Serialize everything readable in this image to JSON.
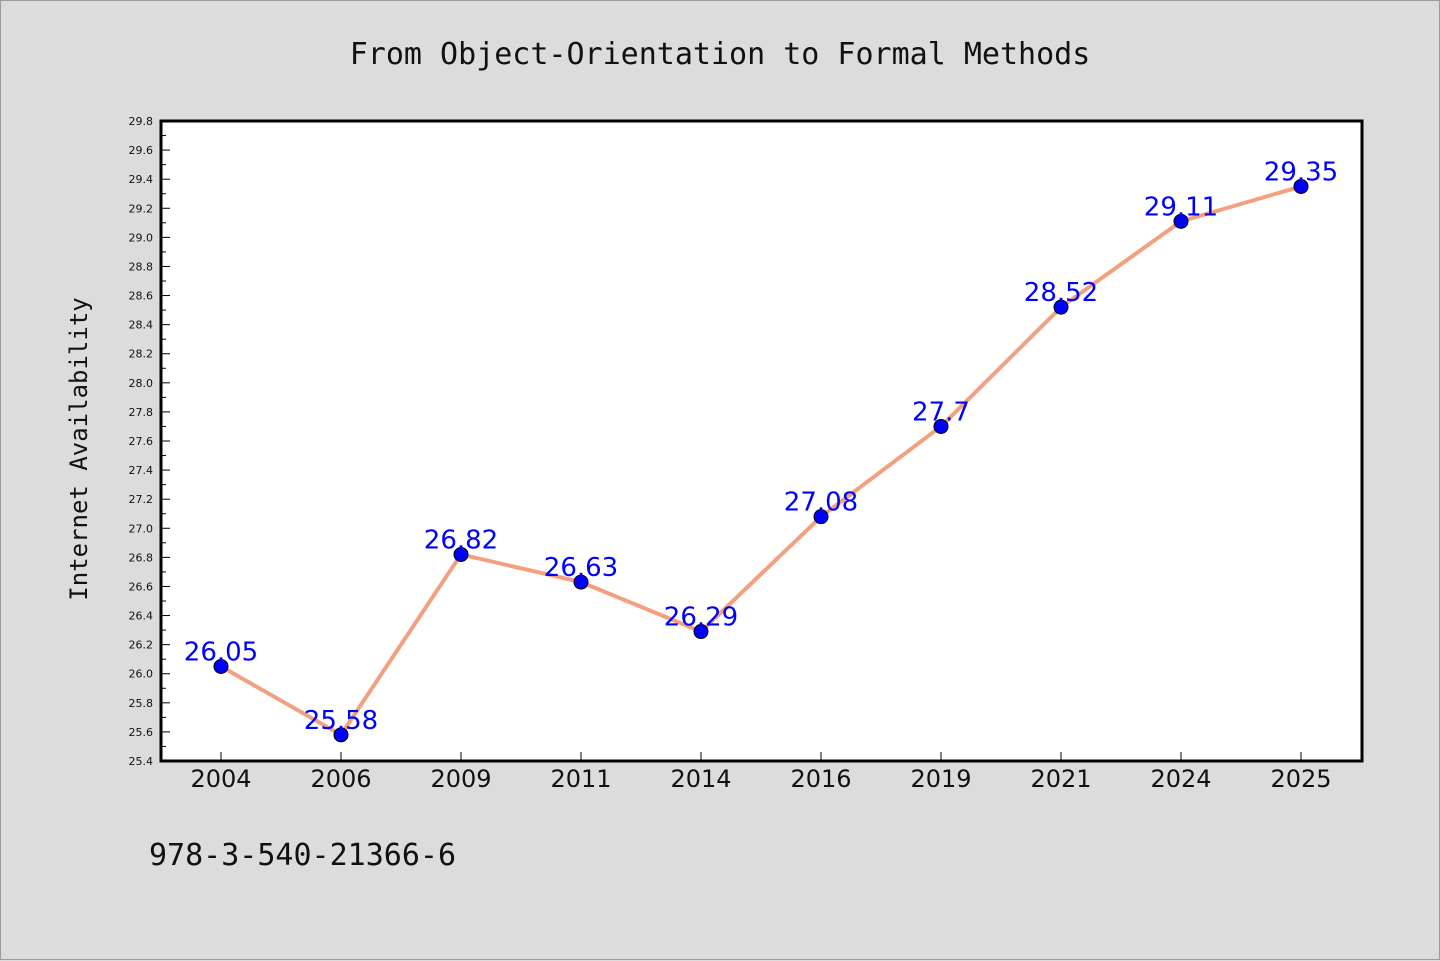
{
  "chart_data": {
    "type": "line",
    "title": "From Object-Orientation to Formal Methods",
    "xlabel": "",
    "ylabel": "Internet Availability",
    "categories": [
      "2004",
      "2006",
      "2009",
      "2011",
      "2014",
      "2016",
      "2019",
      "2021",
      "2024",
      "2025"
    ],
    "series": [
      {
        "values": [
          26.05,
          25.58,
          26.82,
          26.63,
          26.29,
          27.08,
          27.7,
          28.52,
          29.11,
          29.35
        ],
        "data_labels": [
          "26.05",
          "25.58",
          "26.82",
          "26.63",
          "26.29",
          "27.08",
          "27.7",
          "28.52",
          "29.11",
          "29.35"
        ],
        "line_color": "#f4a07f",
        "marker_color": "#0000ff"
      }
    ],
    "ylim": [
      25.4,
      29.8
    ],
    "yticks": [
      "25.4",
      "25.6",
      "25.8",
      "26.0",
      "26.2",
      "26.4",
      "26.6",
      "26.8",
      "27.0",
      "27.2",
      "27.4",
      "27.6",
      "27.8",
      "28.0",
      "28.2",
      "28.4",
      "28.6",
      "28.8",
      "29.0",
      "29.2",
      "29.4",
      "29.6",
      "29.8"
    ],
    "grid": false,
    "legend": "none",
    "colors": {
      "background": "#dcdcdc",
      "plot_background": "#ffffff",
      "label_color": "#0000ff"
    }
  },
  "footnote": "978-3-540-21366-6"
}
